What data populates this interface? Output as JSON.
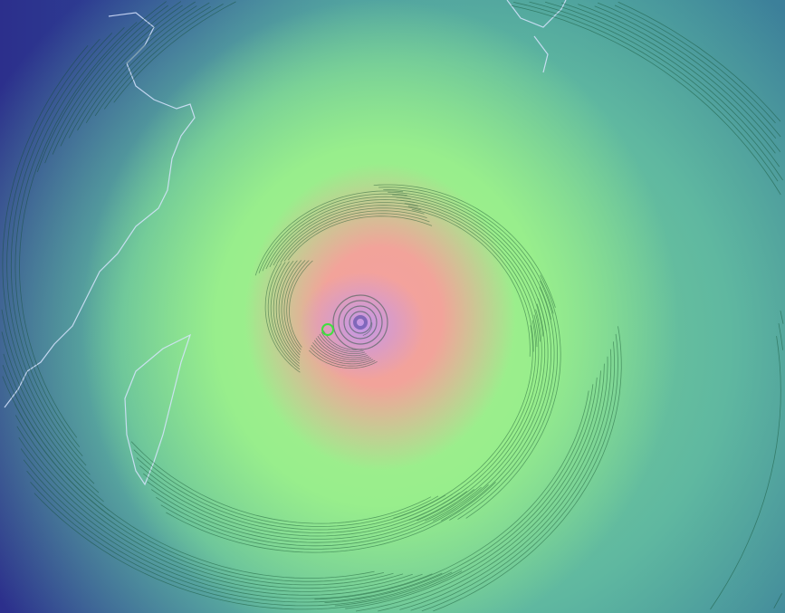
{
  "map": {
    "layer": "wind",
    "colors": {
      "calm": "#2c2f8c",
      "moderate": "#3f8f9c",
      "strong": "#98ee8c",
      "very_strong": "#f4a0a0",
      "extreme": "#be96f0",
      "streamline": "#0d4a2a",
      "coastline": "#d8e4ff",
      "marker": "#3ee03e"
    },
    "icons": [
      "location-marker-icon"
    ]
  }
}
